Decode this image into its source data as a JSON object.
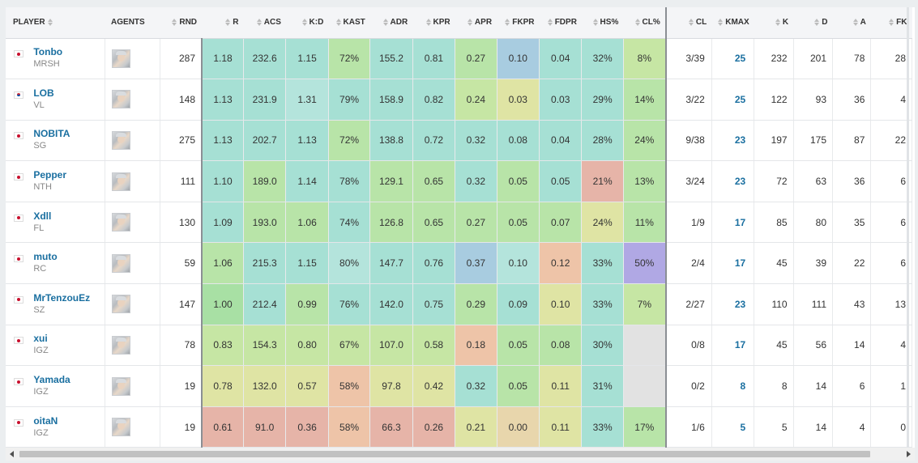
{
  "columns": {
    "player": "PLAYER",
    "agents": "AGENTS",
    "rnd": "RND",
    "r": "R",
    "acs": "ACS",
    "kd": "K:D",
    "kast": "KAST",
    "adr": "ADR",
    "kpr": "KPR",
    "apr": "APR",
    "fkpr": "FKPR",
    "fdpr": "FDPR",
    "hs": "HS%",
    "clp": "CL%",
    "cl": "CL",
    "kmax": "KMAX",
    "k": "K",
    "d": "D",
    "a": "A",
    "fk": "FK"
  },
  "colors": {
    "deep_green": "#a8e0a4",
    "green": "#b8e4a8",
    "teal": "#a6e0d4",
    "light_teal": "#b4e4dc",
    "lime": "#c6e6a4",
    "yellow": "#dfe4a4",
    "tan": "#e8d6ac",
    "salmon": "#eec4a8",
    "pink": "#e6b4a8",
    "blue": "#a8cce0",
    "purple": "#b0a8e4",
    "grey": "#e2e2e2"
  },
  "players": [
    {
      "name": "Tonbo",
      "team": "MRSH",
      "flag": "jp",
      "rnd": "287",
      "r": "1.18",
      "acs": "232.6",
      "kd": "1.15",
      "kast": "72%",
      "adr": "155.2",
      "kpr": "0.81",
      "apr": "0.27",
      "fkpr": "0.10",
      "fdpr": "0.04",
      "hs": "32%",
      "clp": "8%",
      "cl": "3/39",
      "kmax": "25",
      "k": "232",
      "d": "201",
      "a": "78",
      "fk": "28",
      "c": {
        "r": "teal",
        "acs": "teal",
        "kd": "teal",
        "kast": "green",
        "adr": "teal",
        "kpr": "teal",
        "apr": "green",
        "fkpr": "blue",
        "fdpr": "teal",
        "hs": "teal",
        "clp": "lime"
      }
    },
    {
      "name": "LOB",
      "team": "VL",
      "flag": "kr",
      "rnd": "148",
      "r": "1.13",
      "acs": "231.9",
      "kd": "1.31",
      "kast": "79%",
      "adr": "158.9",
      "kpr": "0.82",
      "apr": "0.24",
      "fkpr": "0.03",
      "fdpr": "0.03",
      "hs": "29%",
      "clp": "14%",
      "cl": "3/22",
      "kmax": "25",
      "k": "122",
      "d": "93",
      "a": "36",
      "fk": "4",
      "c": {
        "r": "teal",
        "acs": "teal",
        "kd": "light_teal",
        "kast": "teal",
        "adr": "teal",
        "kpr": "teal",
        "apr": "lime",
        "fkpr": "yellow",
        "fdpr": "teal",
        "hs": "teal",
        "clp": "green"
      }
    },
    {
      "name": "NOBITA",
      "team": "SG",
      "flag": "jp",
      "rnd": "275",
      "r": "1.13",
      "acs": "202.7",
      "kd": "1.13",
      "kast": "72%",
      "adr": "138.8",
      "kpr": "0.72",
      "apr": "0.32",
      "fkpr": "0.08",
      "fdpr": "0.04",
      "hs": "28%",
      "clp": "24%",
      "cl": "9/38",
      "kmax": "23",
      "k": "197",
      "d": "175",
      "a": "87",
      "fk": "22",
      "c": {
        "r": "teal",
        "acs": "teal",
        "kd": "teal",
        "kast": "green",
        "adr": "teal",
        "kpr": "teal",
        "apr": "teal",
        "fkpr": "teal",
        "fdpr": "teal",
        "hs": "teal",
        "clp": "green"
      }
    },
    {
      "name": "Pepper",
      "team": "NTH",
      "flag": "jp",
      "rnd": "111",
      "r": "1.10",
      "acs": "189.0",
      "kd": "1.14",
      "kast": "78%",
      "adr": "129.1",
      "kpr": "0.65",
      "apr": "0.32",
      "fkpr": "0.05",
      "fdpr": "0.05",
      "hs": "21%",
      "clp": "13%",
      "cl": "3/24",
      "kmax": "23",
      "k": "72",
      "d": "63",
      "a": "36",
      "fk": "6",
      "c": {
        "r": "teal",
        "acs": "green",
        "kd": "teal",
        "kast": "teal",
        "adr": "green",
        "kpr": "green",
        "apr": "teal",
        "fkpr": "green",
        "fdpr": "teal",
        "hs": "pink",
        "clp": "green"
      }
    },
    {
      "name": "Xdll",
      "team": "FL",
      "flag": "jp",
      "rnd": "130",
      "r": "1.09",
      "acs": "193.0",
      "kd": "1.06",
      "kast": "74%",
      "adr": "126.8",
      "kpr": "0.65",
      "apr": "0.27",
      "fkpr": "0.05",
      "fdpr": "0.07",
      "hs": "24%",
      "clp": "11%",
      "cl": "1/9",
      "kmax": "17",
      "k": "85",
      "d": "80",
      "a": "35",
      "fk": "6",
      "c": {
        "r": "teal",
        "acs": "green",
        "kd": "green",
        "kast": "teal",
        "adr": "green",
        "kpr": "green",
        "apr": "green",
        "fkpr": "green",
        "fdpr": "green",
        "hs": "yellow",
        "clp": "green"
      }
    },
    {
      "name": "muto",
      "team": "RC",
      "flag": "jp",
      "rnd": "59",
      "r": "1.06",
      "acs": "215.3",
      "kd": "1.15",
      "kast": "80%",
      "adr": "147.7",
      "kpr": "0.76",
      "apr": "0.37",
      "fkpr": "0.10",
      "fdpr": "0.12",
      "hs": "33%",
      "clp": "50%",
      "cl": "2/4",
      "kmax": "17",
      "k": "45",
      "d": "39",
      "a": "22",
      "fk": "6",
      "c": {
        "r": "green",
        "acs": "teal",
        "kd": "teal",
        "kast": "light_teal",
        "adr": "teal",
        "kpr": "teal",
        "apr": "blue",
        "fkpr": "light_teal",
        "fdpr": "salmon",
        "hs": "teal",
        "clp": "purple"
      }
    },
    {
      "name": "MrTenzouEz",
      "team": "SZ",
      "flag": "jp",
      "rnd": "147",
      "r": "1.00",
      "acs": "212.4",
      "kd": "0.99",
      "kast": "76%",
      "adr": "142.0",
      "kpr": "0.75",
      "apr": "0.29",
      "fkpr": "0.09",
      "fdpr": "0.10",
      "hs": "33%",
      "clp": "7%",
      "cl": "2/27",
      "kmax": "23",
      "k": "110",
      "d": "111",
      "a": "43",
      "fk": "13",
      "c": {
        "r": "deep_green",
        "acs": "teal",
        "kd": "green",
        "kast": "teal",
        "adr": "teal",
        "kpr": "teal",
        "apr": "green",
        "fkpr": "teal",
        "fdpr": "yellow",
        "hs": "teal",
        "clp": "lime"
      }
    },
    {
      "name": "xui",
      "team": "IGZ",
      "flag": "jp",
      "rnd": "78",
      "r": "0.83",
      "acs": "154.3",
      "kd": "0.80",
      "kast": "67%",
      "adr": "107.0",
      "kpr": "0.58",
      "apr": "0.18",
      "fkpr": "0.05",
      "fdpr": "0.08",
      "hs": "30%",
      "clp": "",
      "cl": "0/8",
      "kmax": "17",
      "k": "45",
      "d": "56",
      "a": "14",
      "fk": "4",
      "c": {
        "r": "lime",
        "acs": "lime",
        "kd": "lime",
        "kast": "lime",
        "adr": "lime",
        "kpr": "lime",
        "apr": "salmon",
        "fkpr": "green",
        "fdpr": "green",
        "hs": "teal",
        "clp": "grey"
      }
    },
    {
      "name": "Yamada",
      "team": "IGZ",
      "flag": "jp",
      "rnd": "19",
      "r": "0.78",
      "acs": "132.0",
      "kd": "0.57",
      "kast": "58%",
      "adr": "97.8",
      "kpr": "0.42",
      "apr": "0.32",
      "fkpr": "0.05",
      "fdpr": "0.11",
      "hs": "31%",
      "clp": "",
      "cl": "0/2",
      "kmax": "8",
      "k": "8",
      "d": "14",
      "a": "6",
      "fk": "1",
      "c": {
        "r": "yellow",
        "acs": "yellow",
        "kd": "yellow",
        "kast": "salmon",
        "adr": "yellow",
        "kpr": "yellow",
        "apr": "teal",
        "fkpr": "green",
        "fdpr": "yellow",
        "hs": "teal",
        "clp": "grey"
      }
    },
    {
      "name": "oitaN",
      "team": "IGZ",
      "flag": "jp",
      "rnd": "19",
      "r": "0.61",
      "acs": "91.0",
      "kd": "0.36",
      "kast": "58%",
      "adr": "66.3",
      "kpr": "0.26",
      "apr": "0.21",
      "fkpr": "0.00",
      "fdpr": "0.11",
      "hs": "33%",
      "clp": "17%",
      "cl": "1/6",
      "kmax": "5",
      "k": "5",
      "d": "14",
      "a": "4",
      "fk": "0",
      "c": {
        "r": "pink",
        "acs": "pink",
        "kd": "pink",
        "kast": "salmon",
        "adr": "pink",
        "kpr": "pink",
        "apr": "yellow",
        "fkpr": "tan",
        "fdpr": "yellow",
        "hs": "teal",
        "clp": "green"
      }
    }
  ]
}
